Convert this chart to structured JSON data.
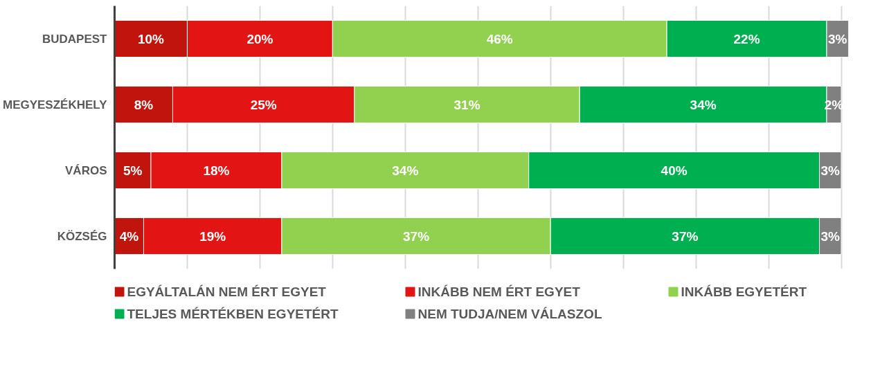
{
  "chart_data": {
    "type": "bar",
    "orientation": "horizontal",
    "stacked": true,
    "categories": [
      "BUDAPEST",
      "MEGYESZÉKHELY",
      "VÁROS",
      "KÖZSÉG"
    ],
    "xlim": [
      0,
      101
    ],
    "xticks": [
      {
        "value": 0,
        "label": null
      },
      {
        "value": 10,
        "label": null
      },
      {
        "value": 20,
        "label": null
      },
      {
        "value": 30,
        "label": null
      },
      {
        "value": 40,
        "label": null
      },
      {
        "value": 50,
        "label": null
      },
      {
        "value": 60,
        "label": null
      },
      {
        "value": 70,
        "label": null
      },
      {
        "value": 80,
        "label": null
      },
      {
        "value": 90,
        "label": null
      },
      {
        "value": 100,
        "label": null
      }
    ],
    "tick_labels": "y",
    "grid": "x",
    "legend": "bottom",
    "series": [
      {
        "name": "EGYÁLTALÁN NEM ÉRT EGYET",
        "color": "#c0140c",
        "values": [
          10,
          8,
          5,
          4
        ],
        "value_labels": [
          "10%",
          "8%",
          "5%",
          "4%"
        ]
      },
      {
        "name": "INKÁBB NEM ÉRT EGYET",
        "color": "#e31414",
        "values": [
          20,
          25,
          18,
          19
        ],
        "value_labels": [
          "20%",
          "25%",
          "18%",
          "19%"
        ]
      },
      {
        "name": "INKÁBB EGYETÉRT",
        "color": "#92d050",
        "values": [
          46,
          31,
          34,
          37
        ],
        "value_labels": [
          "46%",
          "31%",
          "34%",
          "37%"
        ]
      },
      {
        "name": "TELJES MÉRTÉKBEN EGYETÉRT",
        "color": "#00b050",
        "values": [
          22,
          34,
          40,
          37
        ],
        "value_labels": [
          "22%",
          "34%",
          "40%",
          "37%"
        ]
      },
      {
        "name": "NEM TUDJA/NEM VÁLASZOL",
        "color": "#808080",
        "values": [
          3,
          2,
          3,
          3
        ],
        "value_labels": [
          "3%",
          "2%",
          "3%",
          "3%"
        ]
      }
    ]
  }
}
